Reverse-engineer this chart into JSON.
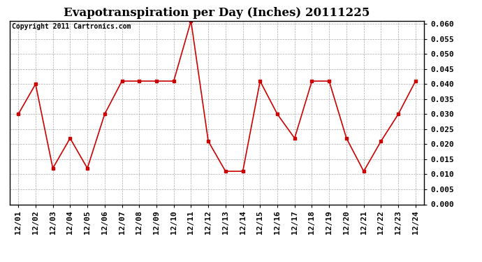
{
  "title": "Evapotranspiration per Day (Inches) 20111225",
  "copyright": "Copyright 2011 Cartronics.com",
  "dates": [
    "12/01",
    "12/02",
    "12/03",
    "12/04",
    "12/05",
    "12/06",
    "12/07",
    "12/08",
    "12/09",
    "12/10",
    "12/11",
    "12/12",
    "12/13",
    "12/14",
    "12/15",
    "12/16",
    "12/17",
    "12/18",
    "12/19",
    "12/20",
    "12/21",
    "12/22",
    "12/23",
    "12/24"
  ],
  "values": [
    0.03,
    0.04,
    0.012,
    0.022,
    0.012,
    0.03,
    0.041,
    0.041,
    0.041,
    0.041,
    0.061,
    0.021,
    0.011,
    0.011,
    0.041,
    0.03,
    0.022,
    0.041,
    0.041,
    0.022,
    0.011,
    0.021,
    0.03,
    0.041
  ],
  "line_color": "#cc0000",
  "marker": "s",
  "marker_size": 3,
  "ylim": [
    0.0,
    0.06
  ],
  "yticks": [
    0.0,
    0.005,
    0.01,
    0.015,
    0.02,
    0.025,
    0.03,
    0.035,
    0.04,
    0.045,
    0.05,
    0.055,
    0.06
  ],
  "background_color": "#ffffff",
  "grid_color": "#aaaaaa",
  "title_fontsize": 12,
  "copyright_fontsize": 7,
  "tick_fontsize": 8,
  "ytick_fontsize": 8
}
